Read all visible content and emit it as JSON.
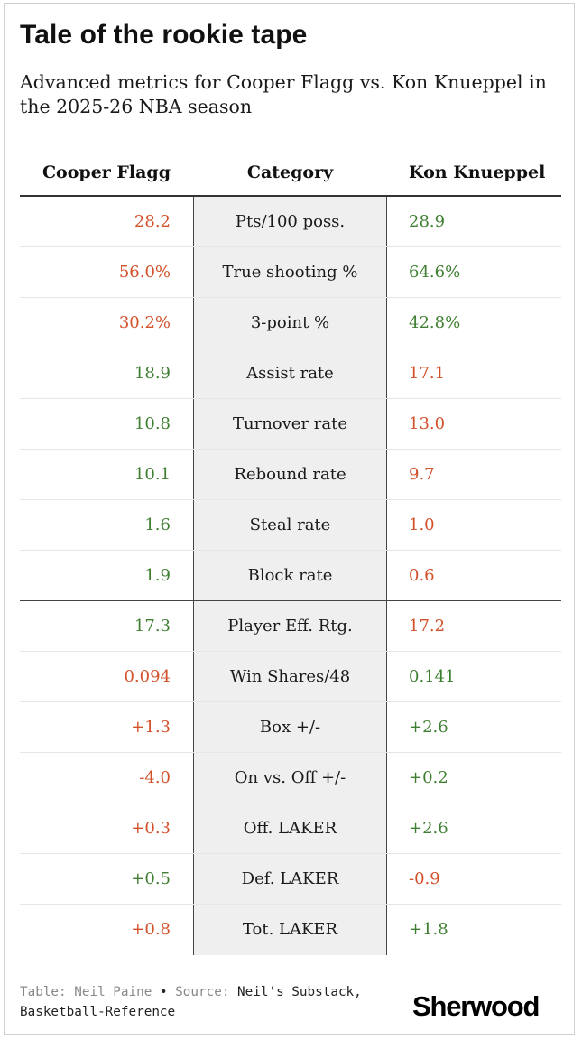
{
  "title": "Tale of the rookie tape",
  "subtitle": "Advanced metrics for Cooper Flagg vs. Kon Knueppel in the 2025-26 NBA season",
  "colors": {
    "better": "#3f7f32",
    "worse": "#d2512a"
  },
  "chart_data": {
    "type": "table",
    "columns": [
      "Cooper Flagg",
      "Category",
      "Kon Knueppel"
    ],
    "rows": [
      {
        "category": "Pts/100 poss.",
        "flagg": "28.2",
        "knueppel": "28.9",
        "flagg_better": false
      },
      {
        "category": "True shooting %",
        "flagg": "56.0%",
        "knueppel": "64.6%",
        "flagg_better": false
      },
      {
        "category": "3-point %",
        "flagg": "30.2%",
        "knueppel": "42.8%",
        "flagg_better": false
      },
      {
        "category": "Assist rate",
        "flagg": "18.9",
        "knueppel": "17.1",
        "flagg_better": true
      },
      {
        "category": "Turnover rate",
        "flagg": "10.8",
        "knueppel": "13.0",
        "flagg_better": true
      },
      {
        "category": "Rebound rate",
        "flagg": "10.1",
        "knueppel": "9.7",
        "flagg_better": true
      },
      {
        "category": "Steal rate",
        "flagg": "1.6",
        "knueppel": "1.0",
        "flagg_better": true
      },
      {
        "category": "Block rate",
        "flagg": "1.9",
        "knueppel": "0.6",
        "flagg_better": true
      },
      {
        "category": "Player Eff. Rtg.",
        "flagg": "17.3",
        "knueppel": "17.2",
        "flagg_better": true
      },
      {
        "category": "Win Shares/48",
        "flagg": "0.094",
        "knueppel": "0.141",
        "flagg_better": false
      },
      {
        "category": "Box +/-",
        "flagg": "+1.3",
        "knueppel": "+2.6",
        "flagg_better": false
      },
      {
        "category": "On vs. Off +/-",
        "flagg": "-4.0",
        "knueppel": "+0.2",
        "flagg_better": false
      },
      {
        "category": "Off. LAKER",
        "flagg": "+0.3",
        "knueppel": "+2.6",
        "flagg_better": false
      },
      {
        "category": "Def. LAKER",
        "flagg": "+0.5",
        "knueppel": "-0.9",
        "flagg_better": true
      },
      {
        "category": "Tot. LAKER",
        "flagg": "+0.8",
        "knueppel": "+1.8",
        "flagg_better": false
      }
    ],
    "group_breaks_after": [
      7,
      11
    ]
  },
  "footer": {
    "table_label": "Table:",
    "table_author": "Neil Paine",
    "bullet": "•",
    "source_label": "Source:",
    "source_text_1": "Neil's Substack,",
    "source_text_2": "Basketball-Reference"
  },
  "logo": "Sherwood"
}
